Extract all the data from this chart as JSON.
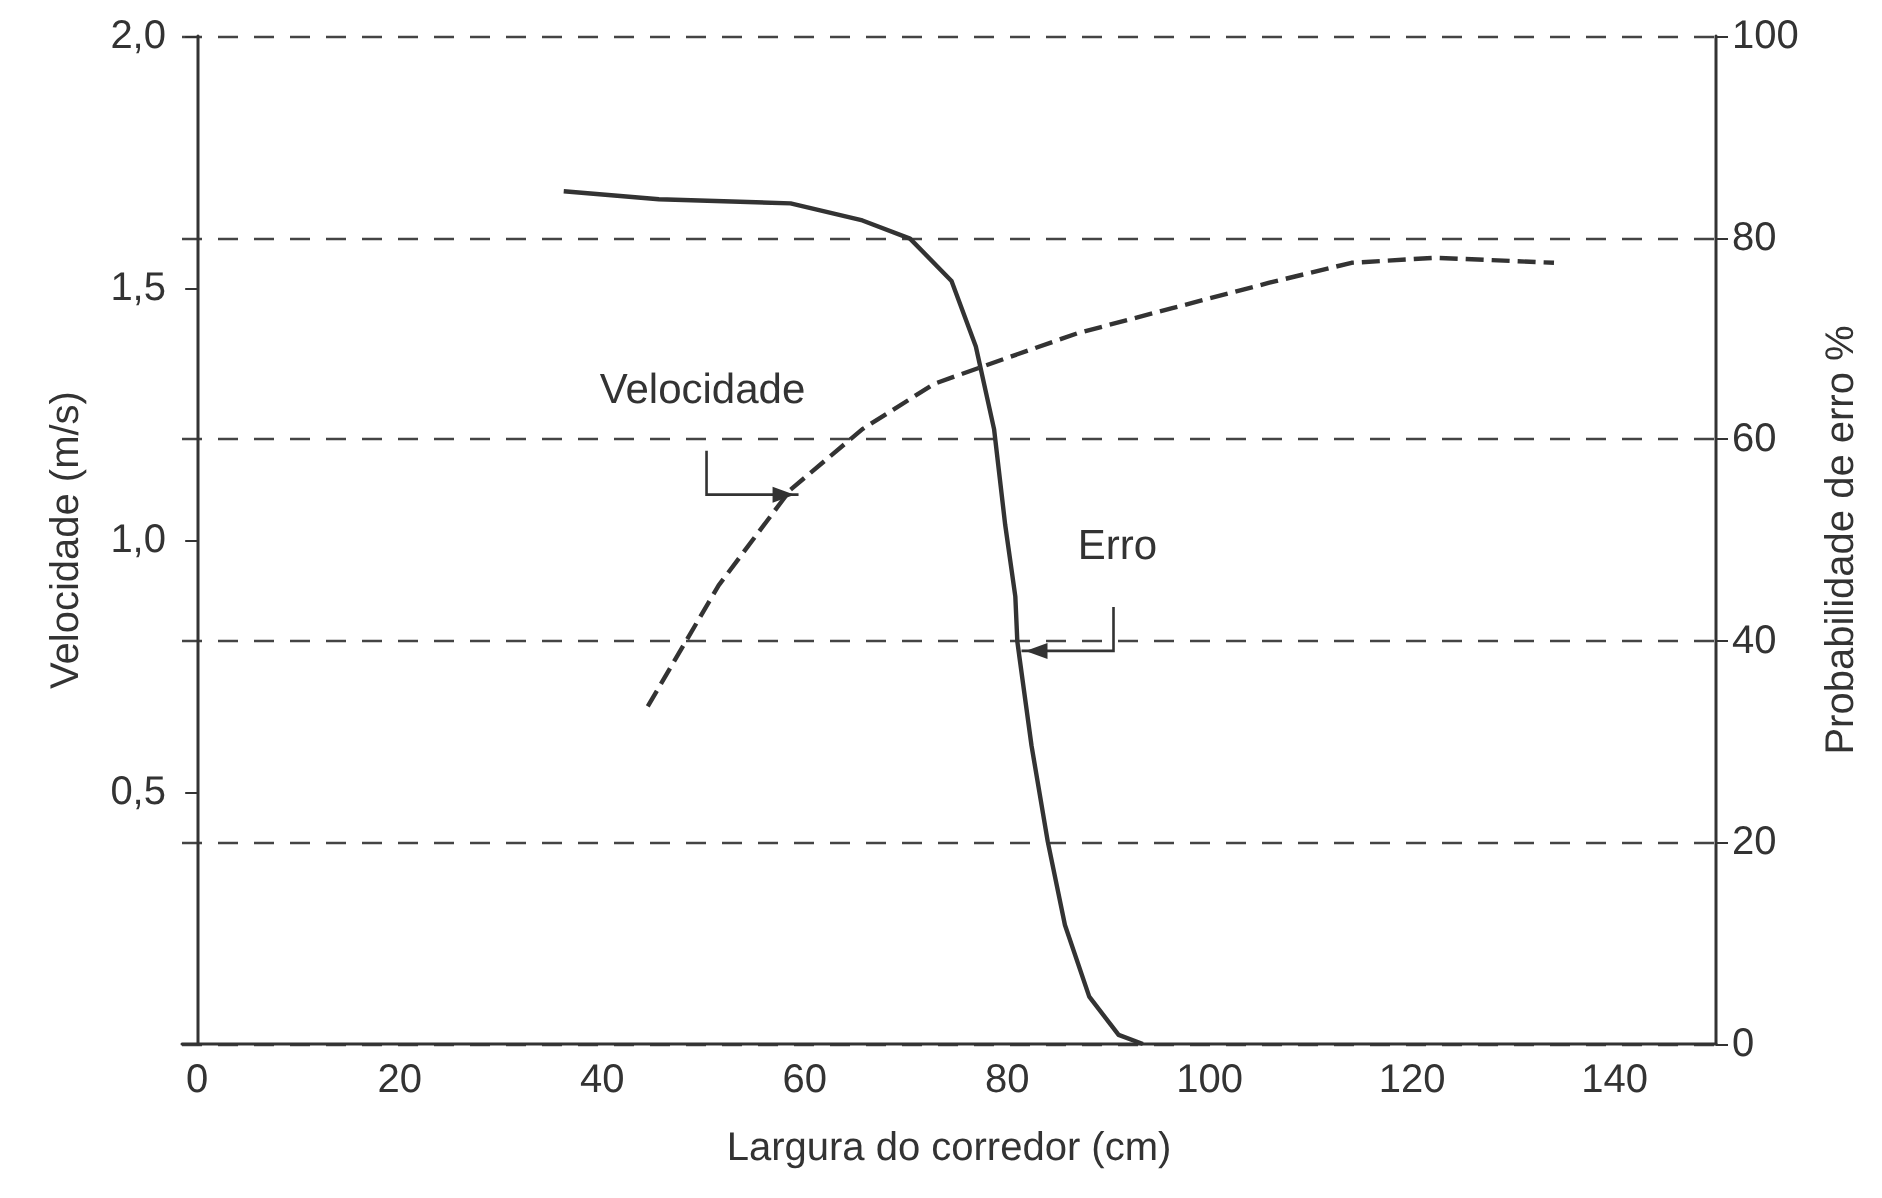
{
  "chart_data": {
    "type": "line",
    "xlabel": "Largura do corredor (cm)",
    "ylabel": "Velocidade (m/s)",
    "y2label": "Probabilidade de erro %",
    "xlim": [
      -1.5,
      150
    ],
    "xticks": [
      0,
      20,
      40,
      60,
      80,
      100,
      120,
      140
    ],
    "ylim": [
      0,
      2
    ],
    "yticks": [
      {
        "value": 0.5,
        "label": "0,5"
      },
      {
        "value": 1,
        "label": "1,0"
      },
      {
        "value": 1.5,
        "label": "1,5"
      },
      {
        "value": 2,
        "label": "2,0"
      }
    ],
    "y2lim": [
      0,
      100
    ],
    "y2ticks": [
      0,
      20,
      40,
      60,
      80,
      100
    ],
    "grid": "y",
    "marker": "none",
    "series": [
      {
        "color": "#333333",
        "line_style": "solid",
        "axis": "y2",
        "x": [
          36.2,
          45.6,
          58.6,
          65.7,
          70.4,
          74.5,
          76.9,
          78.7,
          79.8,
          80.8,
          81,
          82.4,
          84,
          85.7,
          88.1,
          91,
          93.4
        ],
        "values": [
          84.6,
          83.8,
          83.4,
          81.7,
          79.9,
          75.7,
          69.2,
          61,
          51.5,
          44.4,
          39.9,
          29.6,
          20.1,
          11.8,
          4.7,
          0.9,
          0
        ]
      },
      {
        "color": "#333333",
        "line_style": "dashed",
        "x": [
          44.5,
          51.5,
          58.6,
          65.7,
          72.8,
          79.8,
          86.9,
          96.3,
          105.8,
          114,
          122.3,
          134
        ],
        "values": [
          0.67,
          0.91,
          1.1,
          1.22,
          1.31,
          1.36,
          1.41,
          1.46,
          1.51,
          1.55,
          1.56,
          1.55
        ]
      }
    ],
    "annotations": [
      {
        "text": "Velocidade",
        "x": 58.6,
        "y": 1.09
      },
      {
        "text": "Erro",
        "x": 82.2,
        "y": 0.78
      }
    ]
  }
}
